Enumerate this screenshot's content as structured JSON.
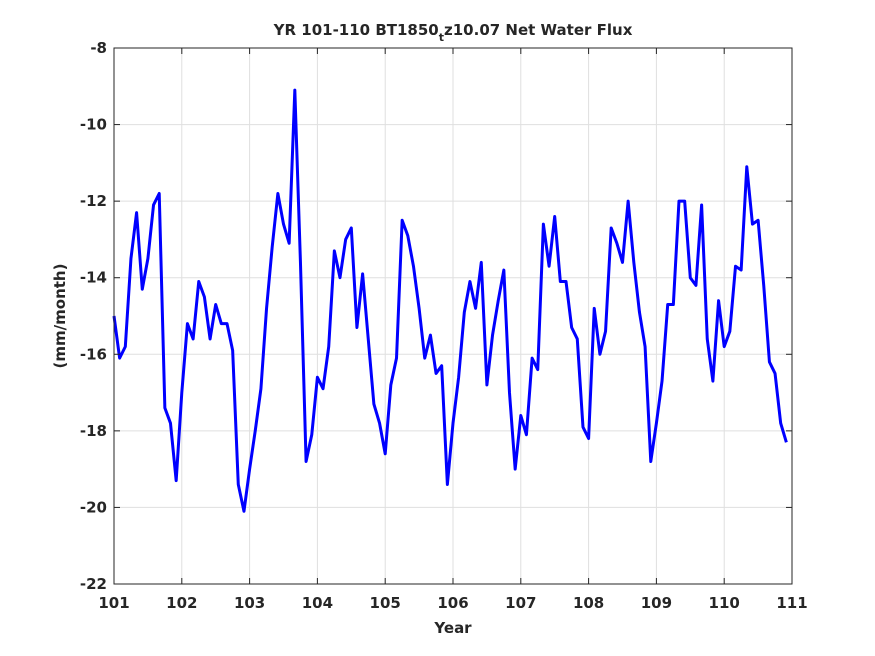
{
  "chart_data": {
    "type": "line",
    "title": {
      "prefix": "YR 101-110 BT1850",
      "subscript": "t",
      "suffix": "z10.07 Net Water Flux"
    },
    "xlabel": "Year",
    "ylabel": "(mm/month)",
    "xlim": [
      101,
      111
    ],
    "ylim": [
      -22,
      -8
    ],
    "xticks": [
      "101",
      "102",
      "103",
      "104",
      "105",
      "106",
      "107",
      "108",
      "109",
      "110",
      "111"
    ],
    "yticks": [
      "-8",
      "-10",
      "-12",
      "-14",
      "-16",
      "-18",
      "-20",
      "-22"
    ],
    "grid": true,
    "line_color": "#0000ff",
    "series": [
      {
        "x": [
          101.0,
          101.083,
          101.167,
          101.25,
          101.333,
          101.417,
          101.5,
          101.583,
          101.667,
          101.75,
          101.833,
          101.917,
          102.0,
          102.083,
          102.167,
          102.25,
          102.333,
          102.417,
          102.5,
          102.583,
          102.667,
          102.75,
          102.833,
          102.917,
          103.0,
          103.083,
          103.167,
          103.25,
          103.333,
          103.417,
          103.5,
          103.583,
          103.667,
          103.75,
          103.833,
          103.917,
          104.0,
          104.083,
          104.167,
          104.25,
          104.333,
          104.417,
          104.5,
          104.583,
          104.667,
          104.75,
          104.833,
          104.917,
          105.0,
          105.083,
          105.167,
          105.25,
          105.333,
          105.417,
          105.5,
          105.583,
          105.667,
          105.75,
          105.833,
          105.917,
          106.0,
          106.083,
          106.167,
          106.25,
          106.333,
          106.417,
          106.5,
          106.583,
          106.667,
          106.75,
          106.833,
          106.917,
          107.0,
          107.083,
          107.167,
          107.25,
          107.333,
          107.417,
          107.5,
          107.583,
          107.667,
          107.75,
          107.833,
          107.917,
          108.0,
          108.083,
          108.167,
          108.25,
          108.333,
          108.417,
          108.5,
          108.583,
          108.667,
          108.75,
          108.833,
          108.917,
          109.0,
          109.083,
          109.167,
          109.25,
          109.333,
          109.417,
          109.5,
          109.583,
          109.667,
          109.75,
          109.833,
          109.917,
          110.0,
          110.083,
          110.167,
          110.25,
          110.333,
          110.417,
          110.5,
          110.583,
          110.667,
          110.75,
          110.833,
          110.917
        ],
        "y": [
          -15.0,
          -16.1,
          -15.8,
          -13.5,
          -12.3,
          -14.3,
          -13.5,
          -12.1,
          -11.8,
          -17.4,
          -17.8,
          -19.3,
          -17.0,
          -15.2,
          -15.6,
          -14.1,
          -14.5,
          -15.6,
          -14.7,
          -15.2,
          -15.2,
          -15.9,
          -19.4,
          -20.1,
          -19.0,
          -18.0,
          -16.9,
          -14.8,
          -13.2,
          -11.8,
          -12.6,
          -13.1,
          -9.1,
          -13.6,
          -18.8,
          -18.1,
          -16.6,
          -16.9,
          -15.8,
          -13.3,
          -14.0,
          -13.0,
          -12.7,
          -15.3,
          -13.9,
          -15.6,
          -17.3,
          -17.8,
          -18.6,
          -16.8,
          -16.1,
          -12.5,
          -12.9,
          -13.7,
          -14.8,
          -16.1,
          -15.5,
          -16.5,
          -16.3,
          -19.4,
          -17.8,
          -16.6,
          -14.9,
          -14.1,
          -14.8,
          -13.6,
          -16.8,
          -15.5,
          -14.6,
          -13.8,
          -17.0,
          -19.0,
          -17.6,
          -18.1,
          -16.1,
          -16.4,
          -12.6,
          -13.7,
          -12.4,
          -14.1,
          -14.1,
          -15.3,
          -15.6,
          -17.9,
          -18.2,
          -14.8,
          -16.0,
          -15.4,
          -12.7,
          -13.1,
          -13.6,
          -12.0,
          -13.6,
          -14.9,
          -15.8,
          -18.8,
          -17.8,
          -16.7,
          -14.7,
          -14.7,
          -12.0,
          -12.0,
          -14.0,
          -14.2,
          -12.1,
          -15.6,
          -16.7,
          -14.6,
          -15.8,
          -15.4,
          -13.7,
          -13.8,
          -11.1,
          -12.6,
          -12.5,
          -14.2,
          -16.2,
          -16.5,
          -17.8,
          -18.3
        ]
      }
    ]
  }
}
